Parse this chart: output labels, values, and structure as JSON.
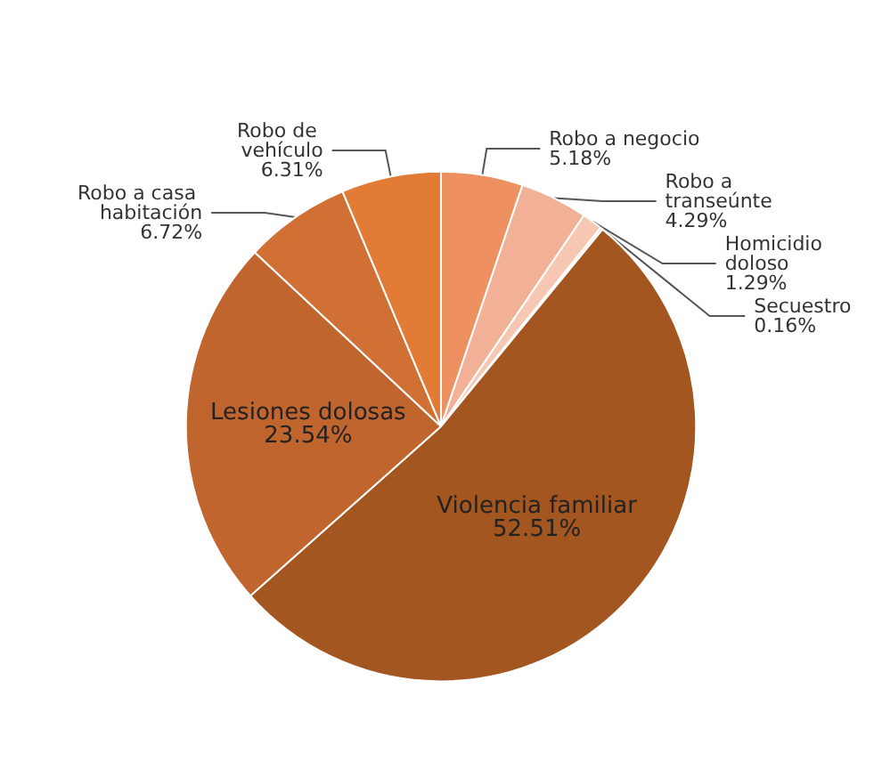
{
  "chart_data": {
    "type": "pie",
    "categories": [
      "Robo a negocio",
      "Robo a transeúnte",
      "Homicidio doloso",
      "Secuestro",
      "Violencia familiar",
      "Lesiones dolosas",
      "Robo a casa habitación",
      "Robo de vehículo"
    ],
    "values": [
      5.18,
      4.29,
      1.29,
      0.16,
      52.51,
      23.54,
      6.72,
      6.31
    ],
    "colors": [
      "#ef9060",
      "#f2b096",
      "#f6c8b4",
      "#f8dccf",
      "#a3561f",
      "#c1652f",
      "#d07035",
      "#e27b36"
    ],
    "value_labels": [
      "5.18%",
      "4.29%",
      "1.29%",
      "0.16%",
      "52.51%",
      "23.54%",
      "6.72%",
      "6.31%"
    ],
    "legend": false
  }
}
